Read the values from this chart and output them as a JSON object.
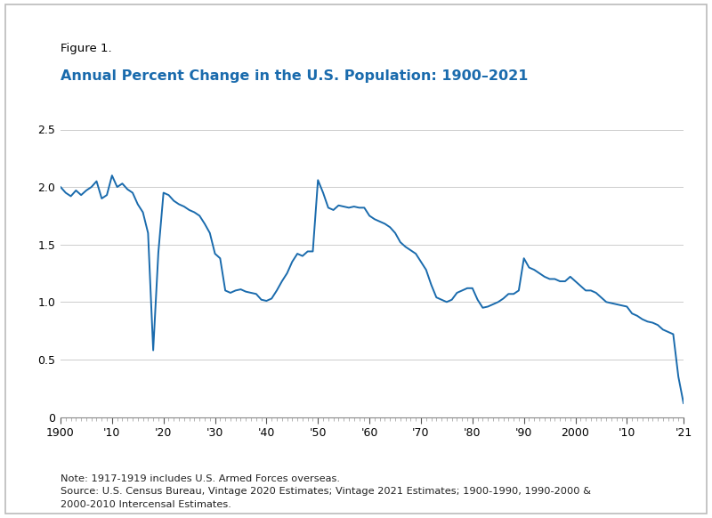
{
  "title_label": "Figure 1.",
  "title_main": "Annual Percent Change in the U.S. Population: 1900–2021",
  "title_label_color": "#000000",
  "title_main_color": "#1A6BAD",
  "line_color": "#1A6BAD",
  "background_color": "#FFFFFF",
  "border_color": "#BBBBBB",
  "note_text": "Note: 1917-1919 includes U.S. Armed Forces overseas.\nSource: U.S. Census Bureau, Vintage 2020 Estimates; Vintage 2021 Estimates; 1900-1990, 1990-2000 &\n2000-2010 Intercensal Estimates.",
  "ylim": [
    0,
    2.5
  ],
  "yticks": [
    0,
    0.5,
    1.0,
    1.5,
    2.0,
    2.5
  ],
  "xtick_labels": [
    "1900",
    "'10",
    "'20",
    "'30",
    "'40",
    "'50",
    "'60",
    "'70",
    "'80",
    "'90",
    "2000",
    "'10",
    "'21"
  ],
  "xtick_positions": [
    1900,
    1910,
    1920,
    1930,
    1940,
    1950,
    1960,
    1970,
    1980,
    1990,
    2000,
    2010,
    2021
  ],
  "years": [
    1900,
    1901,
    1902,
    1903,
    1904,
    1905,
    1906,
    1907,
    1908,
    1909,
    1910,
    1911,
    1912,
    1913,
    1914,
    1915,
    1916,
    1917,
    1918,
    1919,
    1920,
    1921,
    1922,
    1923,
    1924,
    1925,
    1926,
    1927,
    1928,
    1929,
    1930,
    1931,
    1932,
    1933,
    1934,
    1935,
    1936,
    1937,
    1938,
    1939,
    1940,
    1941,
    1942,
    1943,
    1944,
    1945,
    1946,
    1947,
    1948,
    1949,
    1950,
    1951,
    1952,
    1953,
    1954,
    1955,
    1956,
    1957,
    1958,
    1959,
    1960,
    1961,
    1962,
    1963,
    1964,
    1965,
    1966,
    1967,
    1968,
    1969,
    1970,
    1971,
    1972,
    1973,
    1974,
    1975,
    1976,
    1977,
    1978,
    1979,
    1980,
    1981,
    1982,
    1983,
    1984,
    1985,
    1986,
    1987,
    1988,
    1989,
    1990,
    1991,
    1992,
    1993,
    1994,
    1995,
    1996,
    1997,
    1998,
    1999,
    2000,
    2001,
    2002,
    2003,
    2004,
    2005,
    2006,
    2007,
    2008,
    2009,
    2010,
    2011,
    2012,
    2013,
    2014,
    2015,
    2016,
    2017,
    2018,
    2019,
    2020,
    2021
  ],
  "values": [
    2.0,
    1.95,
    1.92,
    1.97,
    1.93,
    1.97,
    2.0,
    2.05,
    1.9,
    1.93,
    2.1,
    2.0,
    2.03,
    1.98,
    1.95,
    1.85,
    1.78,
    1.6,
    0.58,
    1.43,
    1.95,
    1.93,
    1.88,
    1.85,
    1.83,
    1.8,
    1.78,
    1.75,
    1.68,
    1.6,
    1.42,
    1.38,
    1.1,
    1.08,
    1.1,
    1.11,
    1.09,
    1.08,
    1.07,
    1.02,
    1.01,
    1.03,
    1.1,
    1.18,
    1.25,
    1.35,
    1.42,
    1.4,
    1.44,
    1.44,
    2.06,
    1.95,
    1.82,
    1.8,
    1.84,
    1.83,
    1.82,
    1.83,
    1.82,
    1.82,
    1.75,
    1.72,
    1.7,
    1.68,
    1.65,
    1.6,
    1.52,
    1.48,
    1.45,
    1.42,
    1.35,
    1.28,
    1.15,
    1.04,
    1.02,
    1.0,
    1.02,
    1.08,
    1.1,
    1.12,
    1.12,
    1.02,
    0.95,
    0.96,
    0.98,
    1.0,
    1.03,
    1.07,
    1.07,
    1.1,
    1.38,
    1.3,
    1.28,
    1.25,
    1.22,
    1.2,
    1.2,
    1.18,
    1.18,
    1.22,
    1.18,
    1.14,
    1.1,
    1.1,
    1.08,
    1.04,
    1.0,
    0.99,
    0.98,
    0.97,
    0.96,
    0.9,
    0.88,
    0.85,
    0.83,
    0.82,
    0.8,
    0.76,
    0.74,
    0.72,
    0.35,
    0.12
  ]
}
